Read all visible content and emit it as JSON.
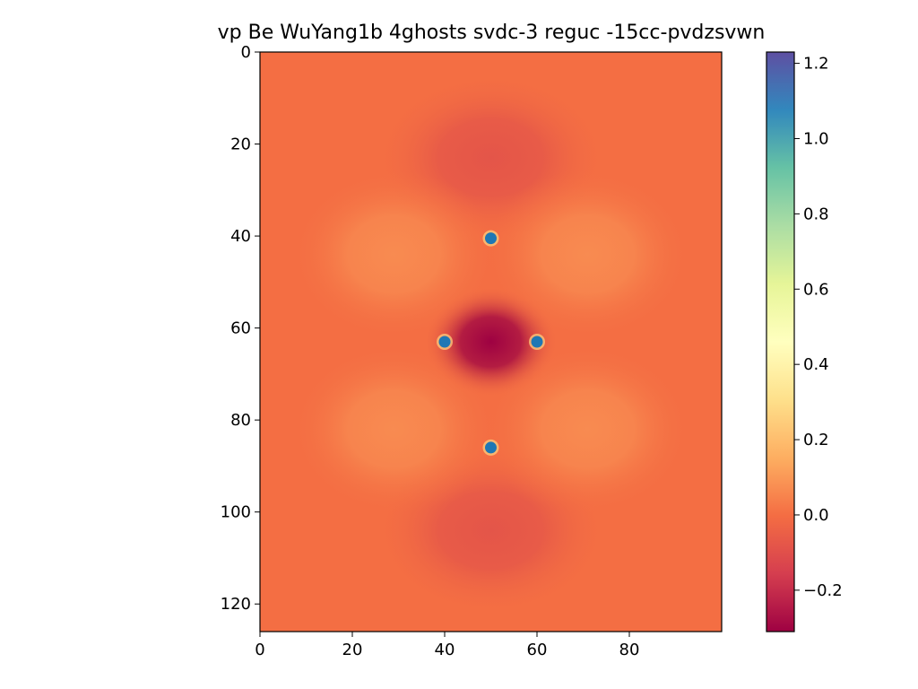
{
  "chart_data": {
    "type": "heatmap",
    "title": "vp Be WuYang1b 4ghosts svdc-3 reguc -15cc-pvdzsvwn",
    "xlabel": "",
    "ylabel": "",
    "xlim": [
      0,
      100
    ],
    "ylim": [
      126,
      0
    ],
    "x_ticks": [
      0,
      20,
      40,
      60,
      80
    ],
    "y_ticks": [
      0,
      20,
      40,
      60,
      80,
      100,
      120
    ],
    "grid": false,
    "colormap": "Spectral",
    "colorbar": {
      "min": -0.31,
      "max": 1.23,
      "ticks": [
        -0.2,
        0.0,
        0.2,
        0.4,
        0.6,
        0.8,
        1.0,
        1.2
      ],
      "tick_labels": [
        "−0.2",
        "0.0",
        "0.2",
        "0.4",
        "0.6",
        "0.8",
        "1.0",
        "1.2"
      ]
    },
    "field_features": [
      {
        "kind": "background",
        "x": 50,
        "y": 63,
        "value": 0.0
      },
      {
        "kind": "minimum",
        "x": 50,
        "y": 63,
        "value": -0.31
      },
      {
        "kind": "minimum",
        "x": 50,
        "y": 23,
        "value": -0.08
      },
      {
        "kind": "minimum",
        "x": 50,
        "y": 104,
        "value": -0.08
      },
      {
        "kind": "maximum",
        "x": 29,
        "y": 44,
        "value": 0.07
      },
      {
        "kind": "maximum",
        "x": 71,
        "y": 44,
        "value": 0.07
      },
      {
        "kind": "maximum",
        "x": 29,
        "y": 82,
        "value": 0.07
      },
      {
        "kind": "maximum",
        "x": 71,
        "y": 82,
        "value": 0.07
      }
    ],
    "points": [
      {
        "x": 50,
        "y": 40.5
      },
      {
        "x": 40,
        "y": 63
      },
      {
        "x": 60,
        "y": 63
      },
      {
        "x": 50,
        "y": 86
      }
    ],
    "point_color": "#1f77b4"
  }
}
